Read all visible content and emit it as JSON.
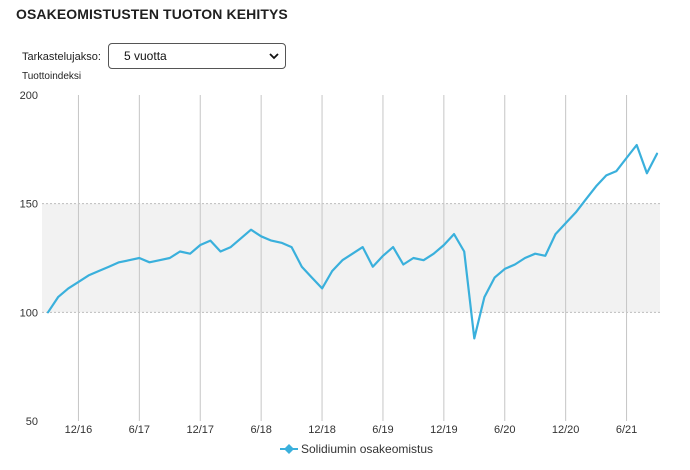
{
  "header": {
    "title": "OSAKEOMISTUSTEN TUOTON KEHITYS"
  },
  "controls": {
    "period_label": "Tarkastelujakso:",
    "period_selected": "5 vuotta"
  },
  "colors": {
    "series": "#3ab0dc",
    "band": "#f2f2f2",
    "grid": "#c6c6c6"
  },
  "icons": {
    "select_arrow": "chevron-down-icon",
    "legend_marker": "diamond-line-icon"
  },
  "chart_data": {
    "type": "line",
    "title": "",
    "ylabel": "Tuottoindeksi",
    "xlabel": "",
    "ylim": [
      50,
      200
    ],
    "yticks": [
      50,
      100,
      150,
      200
    ],
    "xticks": [
      "12/16",
      "6/17",
      "12/17",
      "6/18",
      "12/18",
      "6/19",
      "12/19",
      "6/20",
      "12/20",
      "6/21"
    ],
    "x_range": [
      "2016-09",
      "2021-09"
    ],
    "band": [
      100,
      150
    ],
    "grid": true,
    "legend_position": "bottom-center",
    "series": [
      {
        "name": "Solidiumin osakeomistus",
        "points": [
          [
            "2016-09",
            100
          ],
          [
            "2016-10",
            107
          ],
          [
            "2016-11",
            111
          ],
          [
            "2016-12",
            114
          ],
          [
            "2017-01",
            117
          ],
          [
            "2017-02",
            119
          ],
          [
            "2017-03",
            121
          ],
          [
            "2017-04",
            123
          ],
          [
            "2017-05",
            124
          ],
          [
            "2017-06",
            125
          ],
          [
            "2017-07",
            123
          ],
          [
            "2017-08",
            124
          ],
          [
            "2017-09",
            125
          ],
          [
            "2017-10",
            128
          ],
          [
            "2017-11",
            127
          ],
          [
            "2017-12",
            131
          ],
          [
            "2018-01",
            133
          ],
          [
            "2018-02",
            128
          ],
          [
            "2018-03",
            130
          ],
          [
            "2018-04",
            134
          ],
          [
            "2018-05",
            138
          ],
          [
            "2018-06",
            135
          ],
          [
            "2018-07",
            133
          ],
          [
            "2018-08",
            132
          ],
          [
            "2018-09",
            130
          ],
          [
            "2018-10",
            121
          ],
          [
            "2018-11",
            116
          ],
          [
            "2018-12",
            111
          ],
          [
            "2019-01",
            119
          ],
          [
            "2019-02",
            124
          ],
          [
            "2019-03",
            127
          ],
          [
            "2019-04",
            130
          ],
          [
            "2019-05",
            121
          ],
          [
            "2019-06",
            126
          ],
          [
            "2019-07",
            130
          ],
          [
            "2019-08",
            122
          ],
          [
            "2019-09",
            125
          ],
          [
            "2019-10",
            124
          ],
          [
            "2019-11",
            127
          ],
          [
            "2019-12",
            131
          ],
          [
            "2020-01",
            136
          ],
          [
            "2020-02",
            128
          ],
          [
            "2020-03",
            88
          ],
          [
            "2020-04",
            107
          ],
          [
            "2020-05",
            116
          ],
          [
            "2020-06",
            120
          ],
          [
            "2020-07",
            122
          ],
          [
            "2020-08",
            125
          ],
          [
            "2020-09",
            127
          ],
          [
            "2020-10",
            126
          ],
          [
            "2020-11",
            136
          ],
          [
            "2020-12",
            141
          ],
          [
            "2021-01",
            146
          ],
          [
            "2021-02",
            152
          ],
          [
            "2021-03",
            158
          ],
          [
            "2021-04",
            163
          ],
          [
            "2021-05",
            165
          ],
          [
            "2021-06",
            171
          ],
          [
            "2021-07",
            177
          ],
          [
            "2021-08",
            164
          ],
          [
            "2021-09",
            173
          ]
        ]
      }
    ]
  }
}
